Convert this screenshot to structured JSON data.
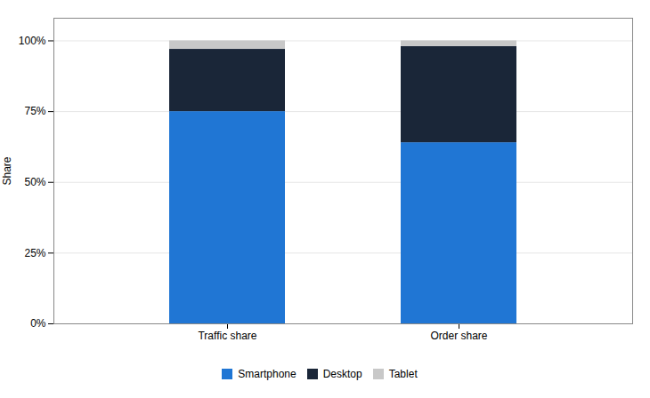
{
  "chart_data": {
    "type": "bar",
    "stacked": true,
    "categories": [
      "Traffic share",
      "Order share"
    ],
    "series": [
      {
        "name": "Smartphone",
        "color": "#2076D4",
        "values": [
          0.75,
          0.64
        ]
      },
      {
        "name": "Desktop",
        "color": "#1A2638",
        "values": [
          0.22,
          0.34
        ]
      },
      {
        "name": "Tablet",
        "color": "#C8C8C8",
        "values": [
          0.03,
          0.02
        ]
      }
    ],
    "ylabel": "Share",
    "ylim": [
      0,
      1.08
    ],
    "yticks": [
      {
        "value": 0,
        "label": "0%"
      },
      {
        "value": 0.25,
        "label": "25%"
      },
      {
        "value": 0.5,
        "label": "50%"
      },
      {
        "value": 0.75,
        "label": "75%"
      },
      {
        "value": 1.0,
        "label": "100%"
      }
    ],
    "grid": true,
    "legend": "bottom"
  }
}
